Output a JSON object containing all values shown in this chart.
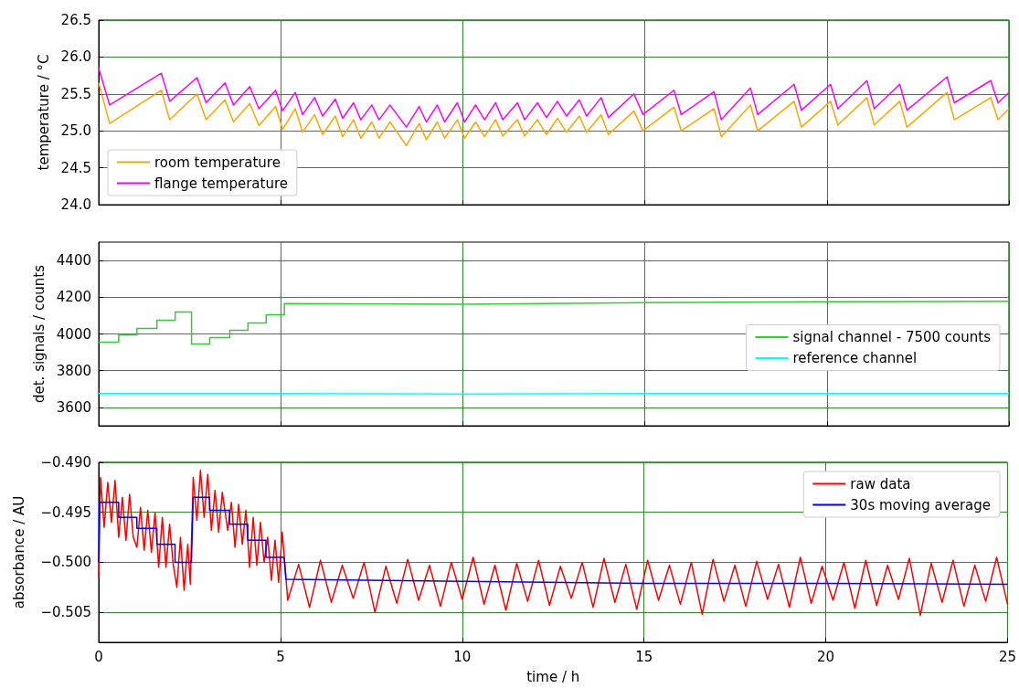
{
  "chart_data": [
    {
      "type": "line",
      "ylabel": "temperature / °C",
      "xlim": [
        0,
        25
      ],
      "xticks": [
        0,
        5,
        10,
        15,
        20,
        25
      ],
      "ylim": [
        24,
        26.5
      ],
      "yticks": [
        {
          "value": 24,
          "label": "24.0"
        },
        24.5,
        {
          "value": 25,
          "label": "25.0"
        },
        25.5,
        {
          "value": 26,
          "label": "26.0"
        },
        26.5
      ],
      "grid": true,
      "legend": "bottom left",
      "tick_labels": "y",
      "marker": "none",
      "line_style": "solid",
      "series": [
        {
          "name": "room temperature",
          "color": "#ffa500",
          "x": [
            0,
            0.3,
            1.72,
            1.95,
            2.7,
            2.95,
            3.47,
            3.7,
            4.15,
            4.4,
            4.86,
            5.05,
            5.4,
            5.6,
            5.93,
            6.15,
            6.5,
            6.7,
            7.0,
            7.2,
            7.5,
            7.7,
            8.0,
            8.45,
            8.8,
            9.0,
            9.3,
            9.5,
            9.85,
            10.05,
            10.35,
            10.6,
            10.9,
            11.1,
            11.5,
            11.7,
            12.05,
            12.3,
            12.6,
            12.85,
            13.2,
            13.4,
            13.8,
            14.0,
            14.7,
            14.95,
            15.8,
            16.0,
            16.9,
            17.1,
            17.9,
            18.1,
            19.1,
            19.3,
            20.1,
            20.3,
            21.1,
            21.3,
            22.0,
            22.2,
            23.3,
            23.5,
            24.5,
            24.7,
            25
          ],
          "values": [
            25.65,
            25.1,
            25.55,
            25.15,
            25.5,
            25.15,
            25.42,
            25.12,
            25.37,
            25.07,
            25.33,
            25.02,
            25.3,
            24.98,
            25.22,
            24.95,
            25.2,
            24.92,
            25.15,
            24.9,
            25.12,
            24.9,
            25.12,
            24.8,
            25.1,
            24.88,
            25.12,
            24.9,
            25.15,
            24.9,
            25.12,
            24.92,
            25.15,
            24.93,
            25.15,
            24.93,
            25.15,
            24.95,
            25.17,
            24.98,
            25.2,
            24.98,
            25.22,
            24.95,
            25.27,
            25.0,
            25.32,
            25.0,
            25.3,
            24.92,
            25.35,
            25.0,
            25.4,
            25.05,
            25.4,
            25.08,
            25.45,
            25.08,
            25.4,
            25.05,
            25.52,
            25.15,
            25.45,
            25.15,
            25.3
          ]
        },
        {
          "name": "flange temperature",
          "color": "#ff00ff",
          "x": [
            0,
            0.3,
            1.72,
            1.95,
            2.7,
            2.95,
            3.47,
            3.7,
            4.15,
            4.4,
            4.86,
            5.05,
            5.4,
            5.6,
            5.93,
            6.15,
            6.5,
            6.7,
            7.0,
            7.2,
            7.5,
            7.7,
            8.0,
            8.45,
            8.8,
            9.0,
            9.3,
            9.5,
            9.85,
            10.05,
            10.35,
            10.6,
            10.9,
            11.1,
            11.5,
            11.7,
            12.05,
            12.3,
            12.6,
            12.85,
            13.2,
            13.4,
            13.8,
            14.0,
            14.7,
            14.95,
            15.8,
            16.0,
            16.9,
            17.1,
            17.9,
            18.1,
            19.1,
            19.3,
            20.1,
            20.3,
            21.1,
            21.3,
            22.0,
            22.2,
            23.3,
            23.5,
            24.5,
            24.7,
            25
          ],
          "values": [
            25.85,
            25.35,
            25.78,
            25.4,
            25.72,
            25.38,
            25.65,
            25.35,
            25.6,
            25.3,
            25.55,
            25.27,
            25.52,
            25.22,
            25.45,
            25.2,
            25.43,
            25.17,
            25.38,
            25.15,
            25.35,
            25.15,
            25.35,
            25.05,
            25.33,
            25.12,
            25.35,
            25.12,
            25.38,
            25.12,
            25.35,
            25.15,
            25.38,
            25.15,
            25.38,
            25.15,
            25.38,
            25.18,
            25.4,
            25.2,
            25.42,
            25.2,
            25.45,
            25.18,
            25.5,
            25.22,
            25.55,
            25.22,
            25.53,
            25.15,
            25.58,
            25.22,
            25.63,
            25.28,
            25.63,
            25.3,
            25.68,
            25.3,
            25.63,
            25.28,
            25.73,
            25.38,
            25.68,
            25.38,
            25.52
          ]
        }
      ]
    },
    {
      "type": "line",
      "ylabel": "det. signals / counts",
      "xlim": [
        0,
        25
      ],
      "xticks": [
        0,
        5,
        10,
        15,
        20,
        25
      ],
      "ylim": [
        3500,
        4500
      ],
      "yticks": [
        3600,
        3800,
        4000,
        4200,
        4400
      ],
      "grid": true,
      "legend": "right",
      "tick_labels": "y",
      "marker": "none",
      "line_style": "solid",
      "series": [
        {
          "name": "signal channel - 7500 counts",
          "color": "#32cd32",
          "x": [
            0,
            0.55,
            0.55,
            1.05,
            1.05,
            1.6,
            1.6,
            2.1,
            2.1,
            2.55,
            2.55,
            3.05,
            3.05,
            3.6,
            3.6,
            4.1,
            4.1,
            4.6,
            4.6,
            5.1,
            5.1,
            10,
            15,
            20,
            25
          ],
          "values": [
            3955,
            3955,
            3995,
            3995,
            4030,
            4030,
            4075,
            4075,
            4120,
            4120,
            3945,
            3945,
            3980,
            3980,
            4020,
            4020,
            4060,
            4060,
            4105,
            4105,
            4165,
            4162,
            4170,
            4175,
            4178
          ]
        },
        {
          "name": "reference channel",
          "color": "#00ffff",
          "x": [
            0,
            5,
            10,
            15,
            20,
            25
          ],
          "values": [
            3675,
            3675,
            3673,
            3675,
            3675,
            3675
          ]
        }
      ]
    },
    {
      "type": "line",
      "xlabel": "time / h",
      "ylabel": "absorbance / AU",
      "xlim": [
        0,
        25
      ],
      "xticks": [
        0,
        5,
        10,
        15,
        20,
        25
      ],
      "ylim": [
        -0.508,
        -0.49
      ],
      "yticks": [
        {
          "value": -0.505,
          "label": "−0.505"
        },
        {
          "value": -0.5,
          "label": "−0.500"
        },
        {
          "value": -0.495,
          "label": "−0.495"
        },
        {
          "value": -0.49,
          "label": "−0.490"
        }
      ],
      "grid": true,
      "legend": "top right",
      "marker": "none",
      "line_style": "solid",
      "series": [
        {
          "name": "raw data",
          "color": "#ff0000",
          "x": [
            0,
            0.05,
            0.15,
            0.25,
            0.35,
            0.45,
            0.55,
            0.65,
            0.75,
            0.85,
            0.95,
            1.05,
            1.15,
            1.25,
            1.35,
            1.45,
            1.55,
            1.65,
            1.75,
            1.85,
            1.95,
            2.05,
            2.15,
            2.25,
            2.35,
            2.45,
            2.52,
            2.6,
            2.7,
            2.8,
            2.9,
            3.0,
            3.1,
            3.2,
            3.3,
            3.4,
            3.55,
            3.65,
            3.75,
            3.85,
            3.95,
            4.05,
            4.15,
            4.25,
            4.35,
            4.45,
            4.55,
            4.65,
            4.75,
            4.85,
            4.95,
            5.05,
            5.2,
            5.5,
            5.8,
            6.1,
            6.4,
            6.7,
            7.0,
            7.3,
            7.6,
            7.9,
            8.2,
            8.5,
            8.8,
            9.1,
            9.4,
            9.7,
            10.0,
            10.3,
            10.6,
            10.9,
            11.2,
            11.5,
            11.8,
            12.1,
            12.4,
            12.7,
            13.0,
            13.3,
            13.6,
            13.9,
            14.2,
            14.5,
            14.8,
            15.1,
            15.4,
            15.7,
            16.0,
            16.3,
            16.6,
            16.9,
            17.2,
            17.5,
            17.8,
            18.1,
            18.4,
            18.7,
            19.0,
            19.3,
            19.6,
            19.9,
            20.2,
            20.5,
            20.8,
            21.1,
            21.4,
            21.7,
            22.0,
            22.3,
            22.6,
            22.9,
            23.2,
            23.5,
            23.8,
            24.1,
            24.4,
            24.7,
            25
          ],
          "values": [
            -0.5015,
            -0.4915,
            -0.4965,
            -0.492,
            -0.496,
            -0.4918,
            -0.4975,
            -0.4935,
            -0.4978,
            -0.4932,
            -0.4975,
            -0.4985,
            -0.4945,
            -0.4988,
            -0.4948,
            -0.499,
            -0.495,
            -0.5005,
            -0.4955,
            -0.5005,
            -0.4962,
            -0.5002,
            -0.5025,
            -0.4975,
            -0.5028,
            -0.4982,
            -0.5022,
            -0.4915,
            -0.4958,
            -0.4908,
            -0.4955,
            -0.4912,
            -0.4968,
            -0.4928,
            -0.497,
            -0.493,
            -0.4968,
            -0.494,
            -0.4985,
            -0.4942,
            -0.4982,
            -0.4948,
            -0.5005,
            -0.4955,
            -0.5003,
            -0.496,
            -0.5,
            -0.4975,
            -0.5018,
            -0.4978,
            -0.502,
            -0.497,
            -0.5038,
            -0.5002,
            -0.5045,
            -0.4998,
            -0.504,
            -0.5003,
            -0.5036,
            -0.5,
            -0.505,
            -0.5004,
            -0.5041,
            -0.4997,
            -0.5038,
            -0.5003,
            -0.5044,
            -0.5,
            -0.5037,
            -0.4995,
            -0.5042,
            -0.5003,
            -0.5048,
            -0.5001,
            -0.5039,
            -0.4998,
            -0.5043,
            -0.5004,
            -0.5036,
            -0.5,
            -0.5045,
            -0.4996,
            -0.504,
            -0.5002,
            -0.5047,
            -0.4998,
            -0.5038,
            -0.5003,
            -0.5042,
            -0.5,
            -0.5052,
            -0.4997,
            -0.5039,
            -0.5003,
            -0.5044,
            -0.4999,
            -0.5037,
            -0.5002,
            -0.5045,
            -0.4995,
            -0.5041,
            -0.5004,
            -0.5038,
            -0.5,
            -0.5046,
            -0.4998,
            -0.5043,
            -0.5003,
            -0.5037,
            -0.4996,
            -0.5053,
            -0.5001,
            -0.504,
            -0.4998,
            -0.5044,
            -0.5003,
            -0.5039,
            -0.4995,
            -0.5042
          ]
        },
        {
          "name": "30s moving average",
          "color": "#0000ff",
          "x": [
            0,
            0.02,
            0.55,
            0.55,
            1.05,
            1.05,
            1.6,
            1.6,
            2.1,
            2.1,
            2.55,
            2.6,
            3.05,
            3.05,
            3.6,
            3.6,
            4.1,
            4.1,
            4.6,
            4.6,
            5.1,
            5.15,
            10,
            15,
            20,
            25
          ],
          "values": [
            -0.5,
            -0.494,
            -0.494,
            -0.4955,
            -0.4955,
            -0.4966,
            -0.4966,
            -0.4982,
            -0.4982,
            -0.5,
            -0.5,
            -0.4935,
            -0.4935,
            -0.4948,
            -0.4948,
            -0.4962,
            -0.4962,
            -0.4978,
            -0.4978,
            -0.4995,
            -0.4995,
            -0.5017,
            -0.5019,
            -0.5021,
            -0.5021,
            -0.5022
          ]
        }
      ]
    }
  ]
}
